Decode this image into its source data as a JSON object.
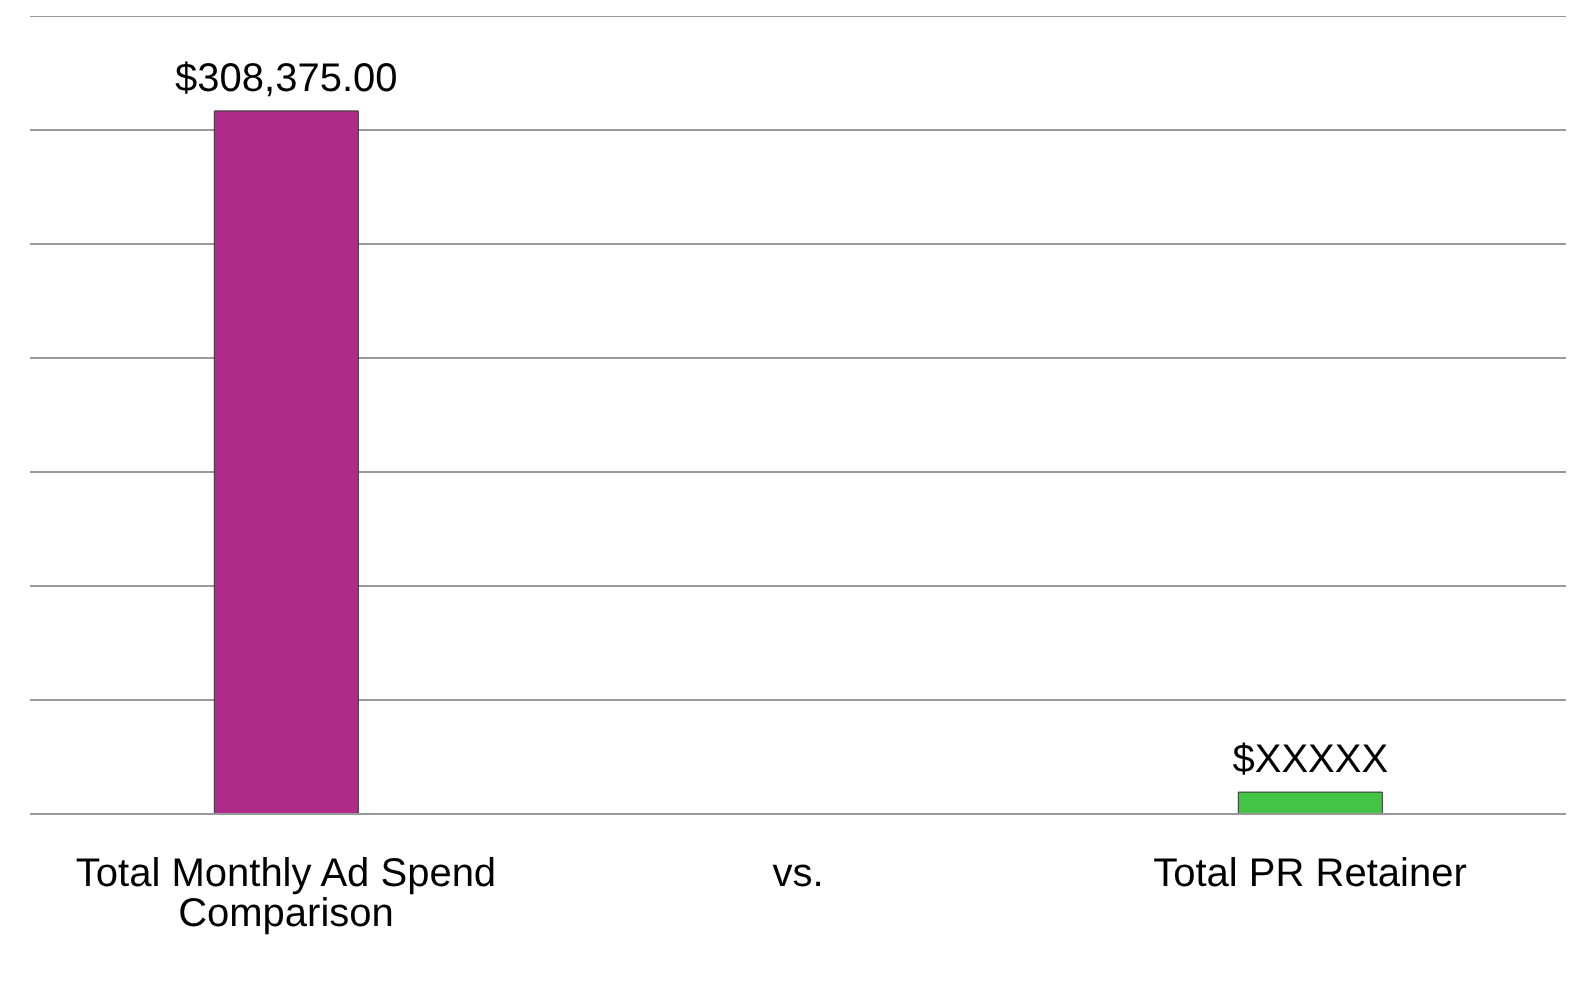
{
  "chart_data": {
    "type": "bar",
    "categories": [
      "Total Monthly Ad Spend Comparison",
      "vs.",
      "Total PR Retainer"
    ],
    "values": [
      308375,
      null,
      9600
    ],
    "colors": [
      "#b02a8a",
      "#888888",
      "#44c444"
    ],
    "value_labels": [
      "$308,375.00",
      null,
      "$XXXXX"
    ],
    "ylim": [
      0,
      350000
    ],
    "tick_labels": "x",
    "grid": "y"
  }
}
